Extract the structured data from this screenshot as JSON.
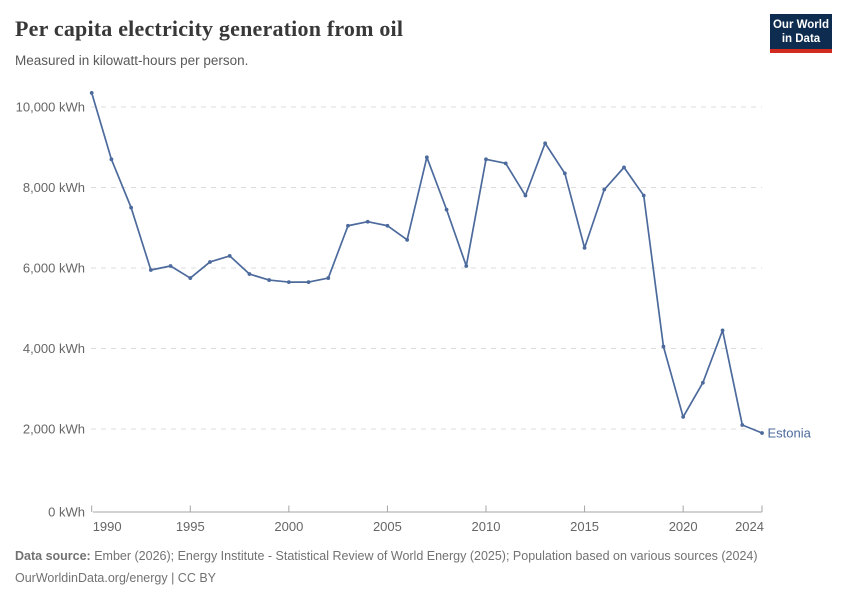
{
  "header": {
    "title": "Per capita electricity generation from oil",
    "subtitle": "Measured in kilowatt-hours per person.",
    "logo": {
      "line1": "Our World",
      "line2": "in Data"
    }
  },
  "chart_data": {
    "type": "line",
    "title": "Per capita electricity generation from oil",
    "unit": "kWh",
    "x": [
      1990,
      1991,
      1992,
      1993,
      1994,
      1995,
      1996,
      1997,
      1998,
      1999,
      2000,
      2001,
      2002,
      2003,
      2004,
      2005,
      2006,
      2007,
      2008,
      2009,
      2010,
      2011,
      2012,
      2013,
      2014,
      2015,
      2016,
      2017,
      2018,
      2019,
      2020,
      2021,
      2022,
      2023,
      2024
    ],
    "series": [
      {
        "name": "Estonia",
        "color": "#4C6A9C",
        "values": [
          10350,
          8700,
          7500,
          5950,
          6050,
          5750,
          6150,
          6300,
          5850,
          5700,
          5650,
          5650,
          5750,
          7050,
          7150,
          7050,
          6700,
          8750,
          7450,
          6050,
          8700,
          8600,
          7800,
          9100,
          8350,
          6500,
          7950,
          8500,
          7800,
          4050,
          2300,
          3150,
          4450,
          2100,
          1900
        ]
      }
    ],
    "ylim": [
      0,
      10500
    ],
    "yticks": [
      0,
      2000,
      4000,
      6000,
      8000,
      10000
    ],
    "ytick_labels": [
      "0 kWh",
      "2,000 kWh",
      "4,000 kWh",
      "6,000 kWh",
      "8,000 kWh",
      "10,000 kWh"
    ],
    "xticks": [
      1990,
      1995,
      2000,
      2005,
      2010,
      2015,
      2020,
      2024
    ],
    "grid": "horizontal-dashed",
    "legend_position": "end-of-line",
    "end_label": "Estonia"
  },
  "colors": {
    "line": "#4C6A9C",
    "grid": "#dcdcdc",
    "axis": "#a5a5a5",
    "tick_label": "#666666"
  },
  "footer": {
    "datasource_label": "Data source:",
    "datasource_text": "Ember (2026); Energy Institute - Statistical Review of World Energy (2025); Population based on various sources (2024)",
    "license_line": "OurWorldinData.org/energy | CC BY"
  }
}
